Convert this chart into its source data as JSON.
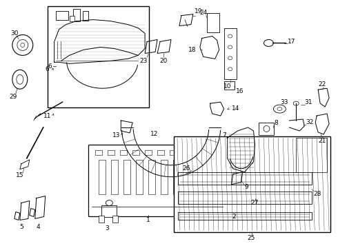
{
  "bg_color": "#ffffff",
  "fig_width": 4.9,
  "fig_height": 3.6,
  "dpi": 100,
  "line_color": "#000000",
  "part_fontsize": 6.5
}
